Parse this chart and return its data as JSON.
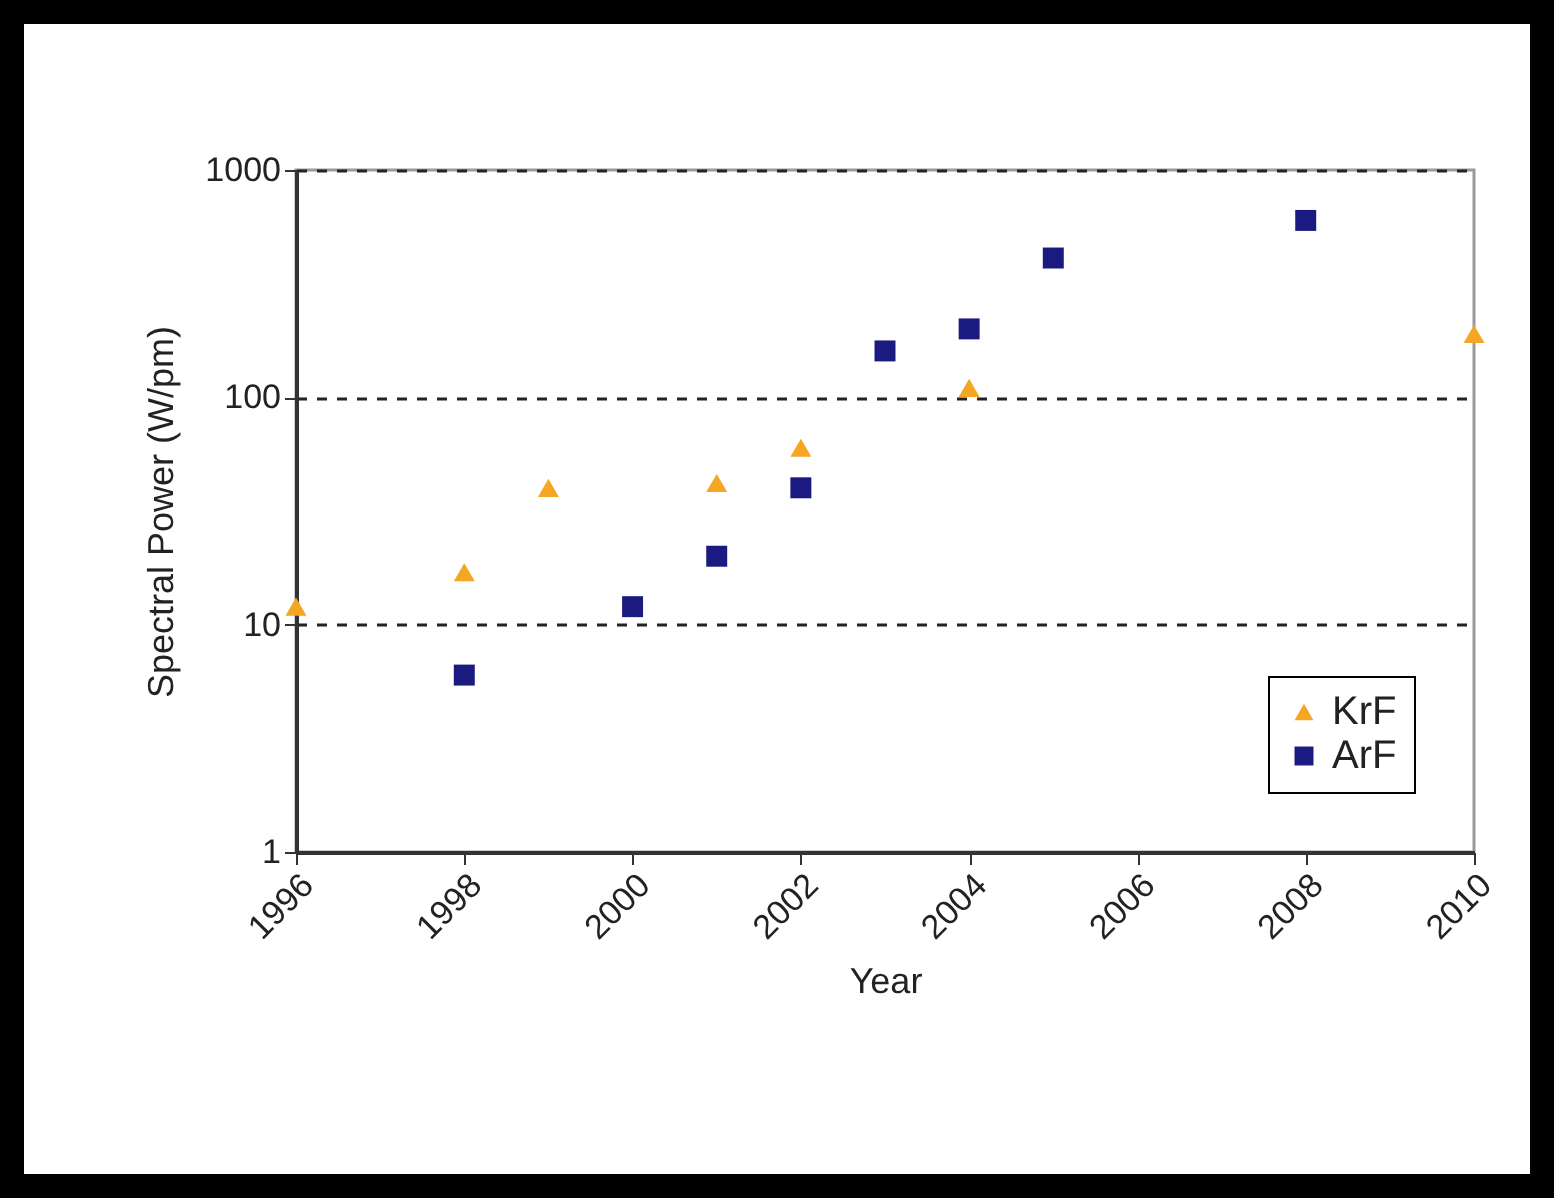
{
  "chart_data": {
    "type": "scatter",
    "xlabel": "Year",
    "ylabel": "Spectral Power (W/pm)",
    "log": "y",
    "xlim": [
      1996,
      2010
    ],
    "xticks": [
      1996,
      1998,
      2000,
      2002,
      2004,
      2006,
      2008,
      2010
    ],
    "ylim": [
      1,
      1000
    ],
    "yticks": [
      1,
      10,
      100,
      1000
    ],
    "grid": "y",
    "legend": "bottom right",
    "series": [
      {
        "name": "KrF",
        "color": "#f5a623",
        "marker": "triangle",
        "x": [
          1996,
          1998,
          1999,
          2001,
          2002,
          2004,
          2010
        ],
        "values": [
          12,
          17,
          40,
          42,
          60,
          110,
          190
        ]
      },
      {
        "name": "ArF",
        "color": "#1a1a80",
        "marker": "square",
        "x": [
          1998,
          2000,
          2001,
          2002,
          2003,
          2004,
          2005,
          2008
        ],
        "values": [
          6,
          12,
          20,
          40,
          160,
          200,
          410,
          600
        ]
      }
    ]
  }
}
